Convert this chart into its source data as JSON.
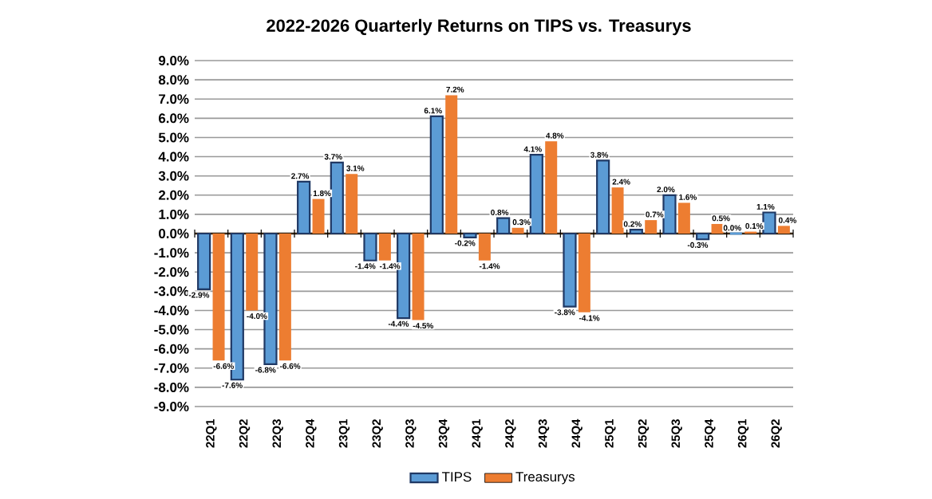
{
  "chart_data": {
    "type": "bar",
    "title": "2022-2026 Quarterly Returns on TIPS vs. Treasurys",
    "categories": [
      "22Q1",
      "22Q2",
      "22Q3",
      "22Q4",
      "23Q1",
      "23Q2",
      "23Q3",
      "23Q4",
      "24Q1",
      "24Q2",
      "24Q3",
      "24Q4",
      "25Q1",
      "25Q2",
      "25Q3",
      "25Q4",
      "26Q1",
      "26Q2"
    ],
    "series": [
      {
        "name": "TIPS",
        "color": "#5b9bd5",
        "values": [
          -2.9,
          -7.6,
          -6.8,
          2.7,
          3.7,
          -1.4,
          -4.4,
          6.1,
          -0.2,
          0.8,
          4.1,
          -3.8,
          3.8,
          0.2,
          2.0,
          -0.3,
          0.0,
          1.1
        ],
        "value_labels": [
          "-2.9%",
          "-7.6%",
          "-6.8%",
          "2.7%",
          "3.7%",
          "-1.4%",
          "-4.4%",
          "6.1%",
          "-0.2%",
          "0.8%",
          "4.1%",
          "-3.8%",
          "3.8%",
          "0.2%",
          "2.0%",
          "-0.3%",
          "0.0%",
          "1.1%"
        ]
      },
      {
        "name": "Treasurys",
        "color": "#ed7d31",
        "values": [
          -6.6,
          -4.0,
          -6.6,
          1.8,
          3.1,
          -1.4,
          -4.5,
          7.2,
          -1.4,
          0.3,
          4.8,
          -4.1,
          2.4,
          0.7,
          1.6,
          0.5,
          0.1,
          0.4
        ],
        "value_labels": [
          "-6.6%",
          "-4.0%",
          "-6.6%",
          "1.8%",
          "3.1%",
          "-1.4%",
          "-4.5%",
          "7.2%",
          "-1.4%",
          "0.3%",
          "4.8%",
          "-4.1%",
          "2.4%",
          "0.7%",
          "1.6%",
          "0.5%",
          "0.1%",
          "0.4%"
        ]
      }
    ],
    "ylim": [
      -9,
      9
    ],
    "yticks": [
      {
        "value": -9,
        "label": "-9.0%"
      },
      {
        "value": -8,
        "label": "-8.0%"
      },
      {
        "value": -7,
        "label": "-7.0%"
      },
      {
        "value": -6,
        "label": "-6.0%"
      },
      {
        "value": -5,
        "label": "-5.0%"
      },
      {
        "value": -4,
        "label": "-4.0%"
      },
      {
        "value": -3,
        "label": "-3.0%"
      },
      {
        "value": -2,
        "label": "-2.0%"
      },
      {
        "value": -1,
        "label": "-1.0%"
      },
      {
        "value": 0,
        "label": "0.0%"
      },
      {
        "value": 1,
        "label": "1.0%"
      },
      {
        "value": 2,
        "label": "2.0%"
      },
      {
        "value": 3,
        "label": "3.0%"
      },
      {
        "value": 4,
        "label": "4.0%"
      },
      {
        "value": 5,
        "label": "5.0%"
      },
      {
        "value": 6,
        "label": "6.0%"
      },
      {
        "value": 7,
        "label": "7.0%"
      },
      {
        "value": 8,
        "label": "8.0%"
      },
      {
        "value": 9,
        "label": "9.0%"
      }
    ],
    "grid": "y",
    "legend": "bottom"
  }
}
